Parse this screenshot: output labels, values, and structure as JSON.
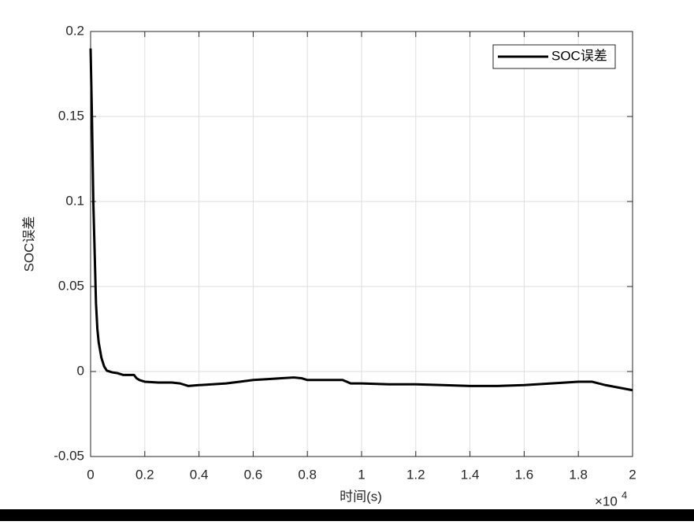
{
  "chart_data": {
    "type": "line",
    "xlabel": "时间(s)",
    "ylabel": "SOC误差",
    "x_multiplier": "×10",
    "x_exponent": "4",
    "x": [
      0,
      50,
      100,
      150,
      200,
      250,
      300,
      400,
      500,
      600,
      800,
      1000,
      1200,
      1600,
      1700,
      1800,
      2000,
      2500,
      3000,
      3300,
      3600,
      4000,
      4500,
      5000,
      5500,
      6000,
      6500,
      7000,
      7500,
      7800,
      8000,
      8500,
      9000,
      9300,
      9600,
      10000,
      11000,
      12000,
      13000,
      14000,
      15000,
      16000,
      17000,
      18000,
      18500,
      19000,
      19500,
      20000
    ],
    "series": [
      {
        "name": "SOC误差",
        "color": "#000000",
        "values": [
          0.19,
          0.15,
          0.1,
          0.07,
          0.04,
          0.025,
          0.017,
          0.008,
          0.003,
          0.0005,
          -0.0005,
          -0.001,
          -0.002,
          -0.002,
          -0.004,
          -0.005,
          -0.006,
          -0.0065,
          -0.0065,
          -0.007,
          -0.0085,
          -0.008,
          -0.0075,
          -0.007,
          -0.006,
          -0.005,
          -0.0045,
          -0.004,
          -0.0035,
          -0.004,
          -0.005,
          -0.005,
          -0.005,
          -0.005,
          -0.007,
          -0.007,
          -0.0075,
          -0.0075,
          -0.008,
          -0.0085,
          -0.0085,
          -0.008,
          -0.007,
          -0.006,
          -0.006,
          -0.008,
          -0.0095,
          -0.011
        ]
      }
    ],
    "xlim": [
      0,
      20000
    ],
    "xticks": [
      {
        "value": 0,
        "label": "0"
      },
      {
        "value": 2000,
        "label": "0.2"
      },
      {
        "value": 4000,
        "label": "0.4"
      },
      {
        "value": 6000,
        "label": "0.6"
      },
      {
        "value": 8000,
        "label": "0.8"
      },
      {
        "value": 10000,
        "label": "1"
      },
      {
        "value": 12000,
        "label": "1.2"
      },
      {
        "value": 14000,
        "label": "1.4"
      },
      {
        "value": 16000,
        "label": "1.6"
      },
      {
        "value": 18000,
        "label": "1.8"
      },
      {
        "value": 20000,
        "label": "2"
      }
    ],
    "ylim": [
      -0.05,
      0.2
    ],
    "yticks": [
      -0.05,
      0,
      0.05,
      0.1,
      0.15,
      0.2
    ],
    "grid": true,
    "legend": "top-right"
  }
}
